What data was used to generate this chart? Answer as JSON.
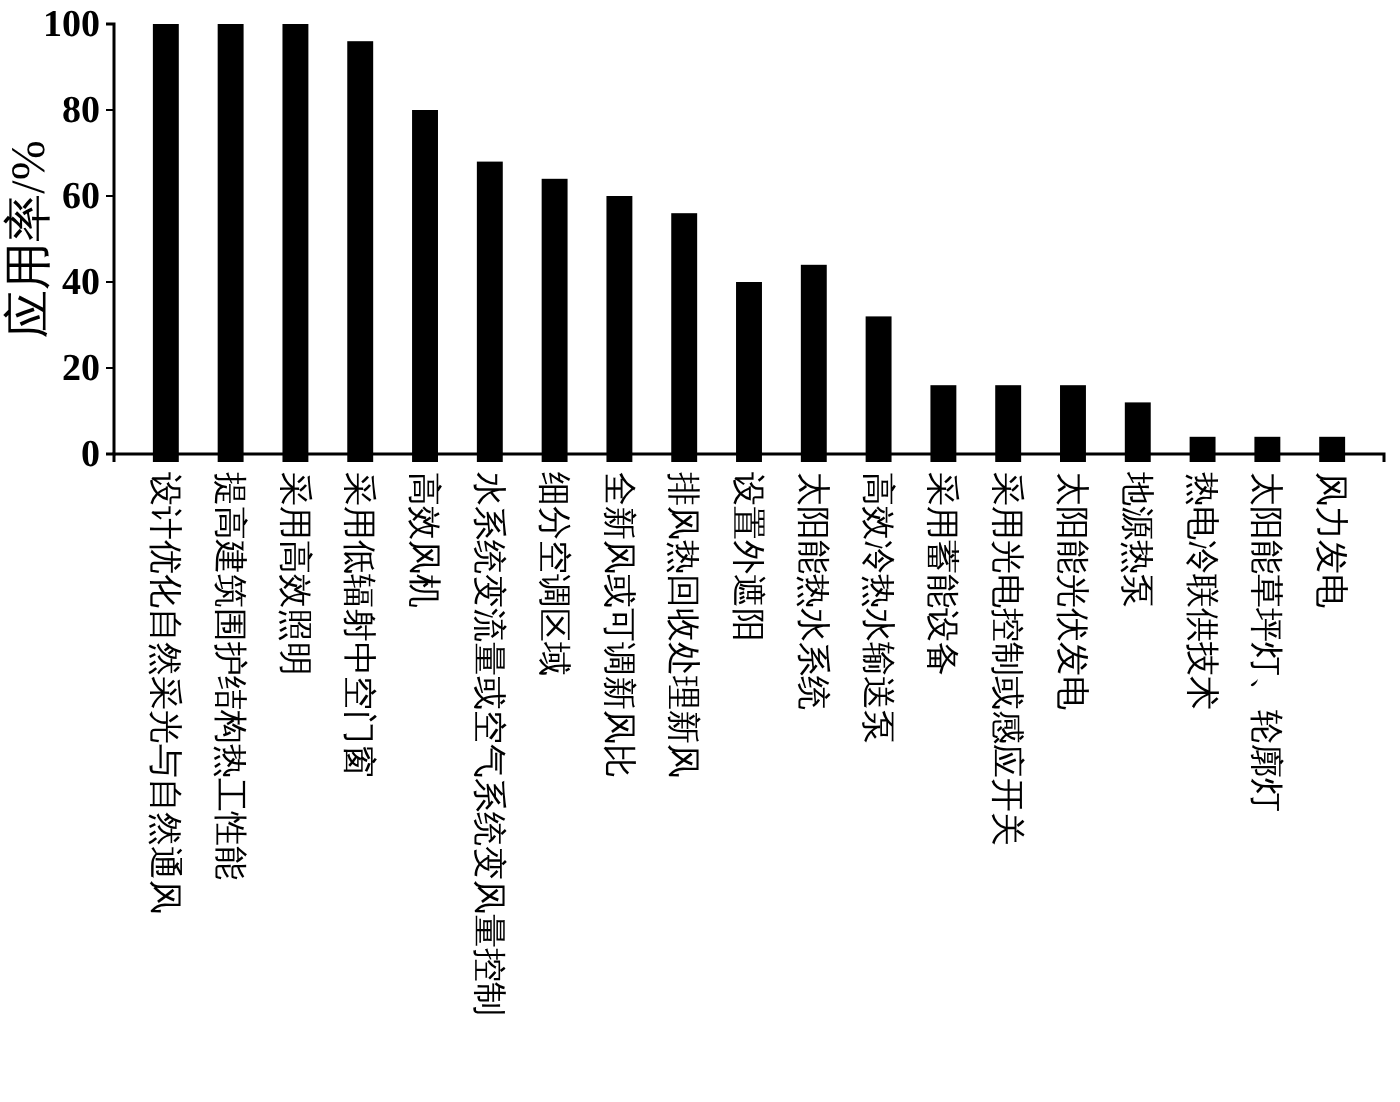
{
  "chart_data": {
    "type": "bar",
    "ylabel": "应用率/%",
    "categories": [
      "设计优化自然采光与自然通风",
      "提高建筑围护结构热工性能",
      "采用高效照明",
      "采用低辐射中空门窗",
      "高效风机",
      "水系统变流量或空气系统变风量控制",
      "细分空调区域",
      "全新风或可调新风比",
      "排风热回收处理新风",
      "设置外遮阳",
      "太阳能热水系统",
      "高效冷热水输送泵",
      "采用蓄能设备",
      "采用光电控制或感应开关",
      "太阳能光伏发电",
      "地源热泵",
      "热电冷联供技术",
      "太阳能草坪灯、轮廓灯",
      "风力发电"
    ],
    "values": [
      100,
      100,
      100,
      96,
      80,
      68,
      64,
      60,
      56,
      40,
      44,
      32,
      16,
      16,
      16,
      12,
      4,
      4,
      4
    ],
    "color": "#000000",
    "ylim": [
      0,
      100
    ],
    "yticks": [
      0,
      20,
      40,
      60,
      80,
      100
    ],
    "grid": false
  }
}
